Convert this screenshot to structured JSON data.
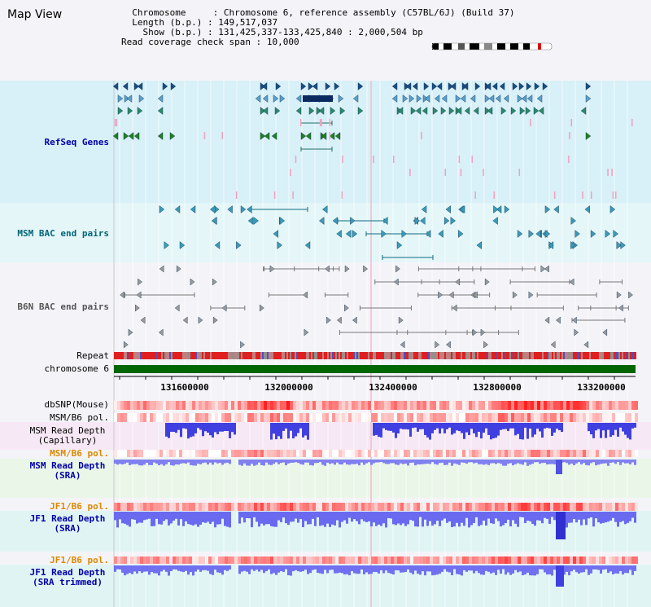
{
  "page": {
    "title": "Map View",
    "info": {
      "chromosome_key": "Chromosome",
      "chromosome_val": "Chromosome 6, reference assembly (C57BL/6J) (Build 37)",
      "length_key": "Length (b.p.)",
      "length_val": "149,517,037",
      "show_key": "Show (b.p.)",
      "show_val": "131,425,337-133,425,840 : 2,000,504 bp",
      "span_key": "Read coverage check span",
      "span_val": "10,000"
    }
  },
  "tracks": {
    "refseq": "RefSeq Genes",
    "msm_bac": "MSM BAC end pairs",
    "b6n_bac": "B6N BAC end pairs",
    "repeat": "Repeat",
    "chromosome": "chromosome 6",
    "dbsnp": "dbSNP(Mouse)",
    "msm_b6_pol_1": "MSM/B6 pol.",
    "msm_rd_cap_1": "MSM Read Depth",
    "msm_rd_cap_2": "(Capillary)",
    "msm_b6_pol_2": "MSM/B6 pol.",
    "msm_rd_sra_1": "MSM Read Depth",
    "msm_rd_sra_2": "(SRA)",
    "jf1_b6_pol_1": "JF1/B6 pol.",
    "jf1_rd_sra_1": "JF1 Read Depth",
    "jf1_rd_sra_2": "(SRA)",
    "jf1_b6_pol_2": "JF1/B6 pol.",
    "jf1_rd_trim_1": "JF1 Read Depth",
    "jf1_rd_trim_2": "(SRA trimmed)"
  },
  "axis": {
    "ticks": [
      "131600000",
      "132000000",
      "132400000",
      "132800000",
      "133200000"
    ]
  },
  "colors": {
    "refseq_label": "#0000aa",
    "msm_label": "#006677",
    "b6n_label": "#555555",
    "pol_label": "#dd8800",
    "depth_label": "#0000aa",
    "refseq_bg": "#d8f0f8",
    "msm_bg": "#e4f6f8",
    "b6n_bg": "#f4f4f8",
    "chromosome_bar": "#006600"
  }
}
